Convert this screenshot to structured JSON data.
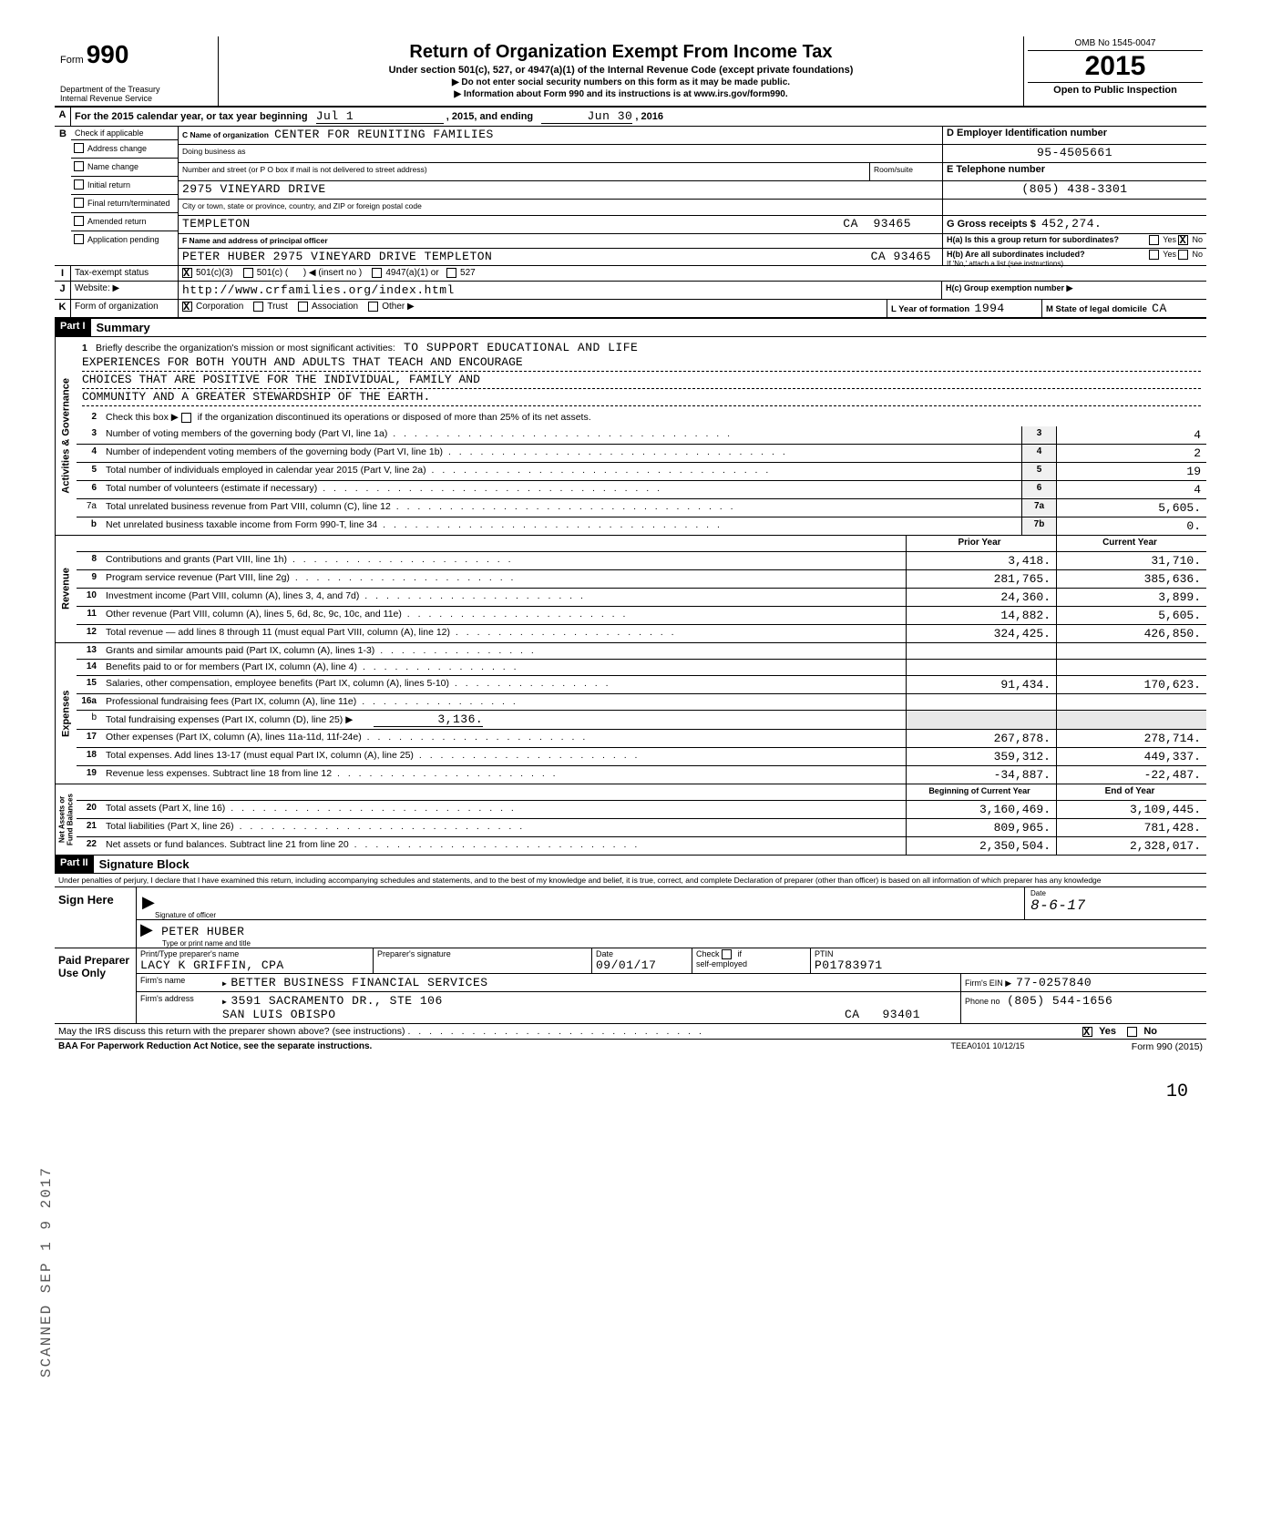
{
  "header": {
    "form_label": "Form",
    "form_number": "990",
    "dept1": "Department of the Treasury",
    "dept2": "Internal Revenue Service",
    "title": "Return of Organization Exempt From Income Tax",
    "subtitle": "Under section 501(c), 527, or 4947(a)(1) of the Internal Revenue Code (except private foundations)",
    "note1": "▶ Do not enter social security numbers on this form as it may be made public.",
    "note2": "▶ Information about Form 990 and its instructions is at www.irs.gov/form990.",
    "omb": "OMB No  1545-0047",
    "year": "2015",
    "open": "Open to Public Inspection"
  },
  "rowA": {
    "label": "A",
    "text": "For the 2015 calendar year, or tax year beginning",
    "begin": "Jul 1",
    "mid": ", 2015, and ending",
    "end": "Jun 30",
    "endyear": ", 2016"
  },
  "colB": {
    "label": "B",
    "hdr": "Check if applicable",
    "items": [
      "Address change",
      "Name change",
      "Initial return",
      "Final return/terminated",
      "Amended return",
      "Application pending"
    ]
  },
  "colC": {
    "name_lbl": "C  Name of organization",
    "name": "CENTER FOR REUNITING FAMILIES",
    "dba_lbl": "Doing business as",
    "dba": "",
    "street_lbl": "Number and street (or P O  box if mail is not delivered to street address)",
    "room_lbl": "Room/suite",
    "street": "2975 VINEYARD DRIVE",
    "city_lbl": "City or town, state or province, country, and ZIP or foreign postal code",
    "city": "TEMPLETON",
    "state": "CA",
    "zip": "93465",
    "f_lbl": "F  Name and address of principal officer",
    "f_name": "PETER HUBER 2975 VINEYARD DRIVE TEMPLETON",
    "f_state": "CA 93465"
  },
  "colD": {
    "d_lbl": "D  Employer Identification number",
    "d_val": "95-4505661",
    "e_lbl": "E  Telephone number",
    "e_val": "(805) 438-3301",
    "g_lbl": "G  Gross receipts $",
    "g_val": "452,274.",
    "ha_lbl": "H(a) Is this a group return for subordinates?",
    "hb_lbl": "H(b) Are all subordinates included?",
    "hb_note": "If 'No,' attach a list  (see instructions)",
    "hc_lbl": "H(c)  Group exemption number  ▶",
    "yes": "Yes",
    "no": "No"
  },
  "rowI": {
    "label": "I",
    "text": "Tax-exempt status",
    "opt1": "501(c)(3)",
    "opt2": "501(c) (",
    "opt2b": ")  ◀   (insert no )",
    "opt3": "4947(a)(1) or",
    "opt4": "527"
  },
  "rowJ": {
    "label": "J",
    "text": "Website: ▶",
    "val": "http://www.crfamilies.org/index.html"
  },
  "rowK": {
    "label": "K",
    "text": "Form of organization",
    "c": "Corporation",
    "t": "Trust",
    "a": "Association",
    "o": "Other ▶",
    "l_lbl": "L Year of formation",
    "l_val": "1994",
    "m_lbl": "M State of legal domicile",
    "m_val": "CA"
  },
  "part1": {
    "label": "Part I",
    "title": "Summary"
  },
  "vert": {
    "ag": "Activities & Governance",
    "rev": "Revenue",
    "exp": "Expenses",
    "nab": "Net Assets or\nFund Balances"
  },
  "mission": {
    "lbl": "Briefly describe the organization's mission or most significant activities:",
    "l1": "TO SUPPORT EDUCATIONAL AND LIFE",
    "l2": "EXPERIENCES FOR BOTH YOUTH AND ADULTS THAT TEACH AND ENCOURAGE",
    "l3": "CHOICES THAT ARE POSITIVE FOR THE INDIVIDUAL, FAMILY AND",
    "l4": "COMMUNITY AND A GREATER STEWARDSHIP OF THE EARTH."
  },
  "line2": "Check this box ▶        if the organization discontinued its operations or disposed of more than 25% of its net assets.",
  "lines_ag": [
    {
      "n": "3",
      "d": "Number of voting members of the governing body (Part VI, line 1a)",
      "b": "3",
      "v": "4"
    },
    {
      "n": "4",
      "d": "Number of independent voting members of the governing body (Part VI, line 1b)",
      "b": "4",
      "v": "2"
    },
    {
      "n": "5",
      "d": "Total number of individuals employed in calendar year 2015 (Part V, line 2a)",
      "b": "5",
      "v": "19"
    },
    {
      "n": "6",
      "d": "Total number of volunteers (estimate if necessary)",
      "b": "6",
      "v": "4"
    },
    {
      "n": "7a",
      "d": "Total unrelated business revenue from Part VIII, column (C), line 12",
      "b": "7a",
      "v": "5,605."
    },
    {
      "n": "b",
      "d": "Net unrelated business taxable income from Form 990-T, line 34",
      "b": "7b",
      "v": "0."
    }
  ],
  "colhdr": {
    "prior": "Prior Year",
    "current": "Current Year",
    "begin": "Beginning of Current Year",
    "end": "End of Year"
  },
  "lines_rev": [
    {
      "n": "8",
      "d": "Contributions and grants (Part VIII, line 1h)",
      "p": "3,418.",
      "c": "31,710."
    },
    {
      "n": "9",
      "d": "Program service revenue (Part VIII, line 2g)",
      "p": "281,765.",
      "c": "385,636."
    },
    {
      "n": "10",
      "d": "Investment income (Part VIII, column (A), lines 3, 4, and 7d)",
      "p": "24,360.",
      "c": "3,899."
    },
    {
      "n": "11",
      "d": "Other revenue (Part VIII, column (A), lines 5, 6d, 8c, 9c, 10c, and 11e)",
      "p": "14,882.",
      "c": "5,605."
    },
    {
      "n": "12",
      "d": "Total revenue — add lines 8 through 11 (must equal Part VIII, column (A), line 12)",
      "p": "324,425.",
      "c": "426,850."
    }
  ],
  "lines_exp": [
    {
      "n": "13",
      "d": "Grants and similar amounts paid (Part IX, column (A), lines 1-3)",
      "p": "",
      "c": ""
    },
    {
      "n": "14",
      "d": "Benefits paid to or for members (Part IX, column (A), line 4)",
      "p": "",
      "c": ""
    },
    {
      "n": "15",
      "d": "Salaries, other compensation, employee benefits (Part IX, column (A), lines 5-10)",
      "p": "91,434.",
      "c": "170,623."
    },
    {
      "n": "16a",
      "d": "Professional fundraising fees (Part IX, column (A), line 11e)",
      "p": "",
      "c": ""
    }
  ],
  "line16b": {
    "n": "b",
    "d": "Total fundraising expenses (Part IX, column (D), line 25) ▶",
    "v": "3,136."
  },
  "lines_exp2": [
    {
      "n": "17",
      "d": "Other expenses (Part IX, column (A), lines 11a-11d, 11f-24e)",
      "p": "267,878.",
      "c": "278,714."
    },
    {
      "n": "18",
      "d": "Total expenses. Add lines 13-17 (must equal Part IX, column (A), line 25)",
      "p": "359,312.",
      "c": "449,337."
    },
    {
      "n": "19",
      "d": "Revenue less expenses. Subtract line 18 from line 12",
      "p": "-34,887.",
      "c": "-22,487."
    }
  ],
  "lines_nab": [
    {
      "n": "20",
      "d": "Total assets (Part X, line 16)",
      "p": "3,160,469.",
      "c": "3,109,445."
    },
    {
      "n": "21",
      "d": "Total liabilities (Part X, line 26)",
      "p": "809,965.",
      "c": "781,428."
    },
    {
      "n": "22",
      "d": "Net assets or fund balances. Subtract line 21 from line 20",
      "p": "2,350,504.",
      "c": "2,328,017."
    }
  ],
  "part2": {
    "label": "Part II",
    "title": "Signature Block"
  },
  "perjury": "Under penalties of perjury, I declare that I have examined this return, including accompanying schedules and statements, and to the best of my knowledge and belief, it is true, correct, and complete  Declaration of preparer (other than officer) is based on all information of which preparer has any knowledge",
  "sign": {
    "here": "Sign Here",
    "sig_lbl": "Signature of officer",
    "date_lbl": "Date",
    "date_val": "8-6-17",
    "name": "PETER HUBER",
    "name_lbl": "Type or print name and title"
  },
  "paid": {
    "hdr": "Paid Preparer Use Only",
    "pt_lbl": "Print/Type preparer's name",
    "pt_val": "LACY K GRIFFIN, CPA",
    "ps_lbl": "Preparer's signature",
    "date_lbl": "Date",
    "date_val": "09/01/17",
    "check_lbl": "Check",
    "if_lbl": "if",
    "se_lbl": "self-employed",
    "ptin_lbl": "PTIN",
    "ptin_val": "P01783971",
    "firm_lbl": "Firm's name",
    "firm_val": "BETTER BUSINESS FINANCIAL SERVICES",
    "addr_lbl": "Firm's address",
    "addr1": "3591 SACRAMENTO DR., STE 106",
    "addr2": "SAN LUIS OBISPO",
    "addr_st": "CA",
    "addr_zip": "93401",
    "ein_lbl": "Firm's EIN ▶",
    "ein_val": "77-0257840",
    "phone_lbl": "Phone no",
    "phone_val": "(805) 544-1656"
  },
  "footer": {
    "discuss": "May the IRS discuss this return with the preparer shown above? (see instructions)",
    "yes": "Yes",
    "no": "No",
    "baa": "BAA  For Paperwork Reduction Act Notice, see the separate instructions.",
    "teea": "TEEA0101  10/12/15",
    "form": "Form 990 (2015)"
  },
  "stamp": "SCANNED SEP 1 9 2017",
  "pagenum": "10"
}
